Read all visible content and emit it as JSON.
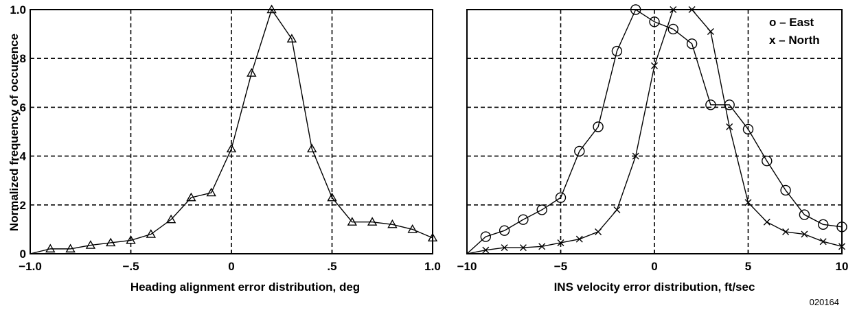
{
  "ylabel": "Normalized frequency of occurence",
  "figure_code": "020164",
  "chart_data": [
    {
      "type": "line",
      "xlabel": "Heading alignment error distribution, deg",
      "xlim": [
        -1.0,
        1.0
      ],
      "ylim": [
        0,
        1.0
      ],
      "x_ticks": [
        -1.0,
        -0.5,
        0,
        0.5,
        1.0
      ],
      "x_tick_labels": [
        "−1.0",
        "−.5",
        "0",
        ".5",
        "1.0"
      ],
      "y_ticks": [
        0,
        0.2,
        0.4,
        0.6,
        0.8,
        1.0
      ],
      "y_tick_labels": [
        "0",
        ".2",
        ".4",
        ".6",
        ".8",
        "1.0"
      ],
      "grid": true,
      "series": [
        {
          "marker": "triangle",
          "x": [
            -1.0,
            -0.9,
            -0.8,
            -0.7,
            -0.6,
            -0.5,
            -0.4,
            -0.3,
            -0.2,
            -0.1,
            0.0,
            0.1,
            0.2,
            0.3,
            0.4,
            0.5,
            0.6,
            0.7,
            0.8,
            0.9,
            1.0
          ],
          "y": [
            0.0,
            0.02,
            0.02,
            0.035,
            0.045,
            0.055,
            0.08,
            0.14,
            0.23,
            0.25,
            0.43,
            0.74,
            1.0,
            0.88,
            0.43,
            0.23,
            0.13,
            0.13,
            0.12,
            0.1,
            0.065
          ]
        }
      ]
    },
    {
      "type": "line",
      "xlabel": "INS velocity error distribution, ft/sec",
      "xlim": [
        -10,
        10
      ],
      "ylim": [
        0,
        1.0
      ],
      "x_ticks": [
        -10,
        -5,
        0,
        5,
        10
      ],
      "x_tick_labels": [
        "−10",
        "−5",
        "0",
        "5",
        "10"
      ],
      "grid": true,
      "legend": [
        "o – East",
        "x – North"
      ],
      "series": [
        {
          "marker": "circle",
          "x": [
            -10,
            -9,
            -8,
            -7,
            -6,
            -5,
            -4,
            -3,
            -2,
            -1,
            0,
            1,
            2,
            3,
            4,
            5,
            6,
            7,
            8,
            9,
            10
          ],
          "y": [
            0.0,
            0.07,
            0.095,
            0.14,
            0.18,
            0.23,
            0.42,
            0.52,
            0.83,
            1.0,
            0.95,
            0.92,
            0.86,
            0.61,
            0.61,
            0.51,
            0.38,
            0.26,
            0.16,
            0.12,
            0.11
          ]
        },
        {
          "marker": "cross",
          "x": [
            -10,
            -9,
            -8,
            -7,
            -6,
            -5,
            -4,
            -3,
            -2,
            -1,
            0,
            1,
            2,
            3,
            4,
            5,
            6,
            7,
            8,
            9,
            10
          ],
          "y": [
            0.0,
            0.015,
            0.025,
            0.025,
            0.03,
            0.045,
            0.06,
            0.09,
            0.18,
            0.4,
            0.77,
            1.0,
            1.0,
            0.91,
            0.52,
            0.21,
            0.13,
            0.09,
            0.08,
            0.05,
            0.03
          ]
        }
      ]
    }
  ]
}
